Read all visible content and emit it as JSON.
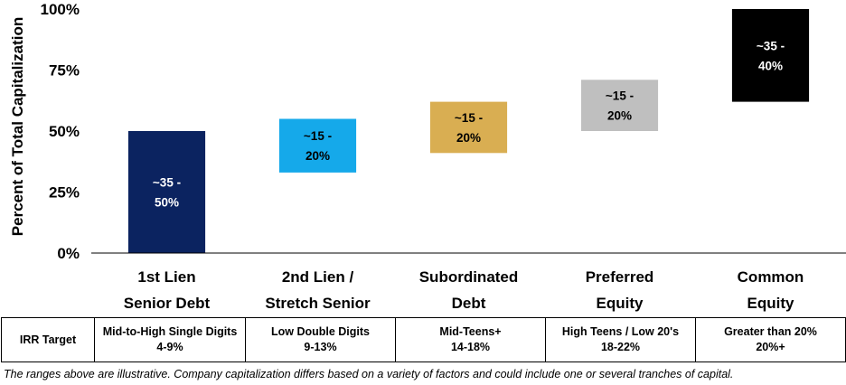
{
  "chart_data": {
    "type": "bar",
    "subtype": "floating",
    "ylabel": "Percent of Total Capitalization",
    "ylim": [
      0,
      100
    ],
    "yticks": [
      "0%",
      "25%",
      "50%",
      "75%",
      "100%"
    ],
    "grid": false,
    "categories": [
      "1st Lien\nSenior Debt",
      "2nd Lien /\nStretch Senior",
      "Subordinated\nDebt",
      "Preferred\nEquity",
      "Common\nEquity"
    ],
    "bars": [
      {
        "low": 0,
        "high": 50,
        "label": "~35 -\n50%",
        "color": "#0b2360",
        "text_color": "#ffffff"
      },
      {
        "low": 33,
        "high": 55,
        "label": "~15 -\n20%",
        "color": "#15a9ea",
        "text_color": "#000000"
      },
      {
        "low": 41,
        "high": 62,
        "label": "~15 -\n20%",
        "color": "#d9ae52",
        "text_color": "#000000"
      },
      {
        "low": 50,
        "high": 71,
        "label": "~15 -\n20%",
        "color": "#bfbfbf",
        "text_color": "#000000"
      },
      {
        "low": 62,
        "high": 100,
        "label": "~35 -\n40%",
        "color": "#000000",
        "text_color": "#ffffff"
      }
    ]
  },
  "irr_table": {
    "header": "IRR Target",
    "cells": [
      "Mid-to-High Single Digits\n4-9%",
      "Low Double Digits\n9-13%",
      "Mid-Teens+\n14-18%",
      "High Teens / Low 20's\n18-22%",
      "Greater than 20%\n20%+"
    ]
  },
  "footnote": "The ranges above are illustrative. Company capitalization differs based on a variety of factors and could include one or several tranches of capital."
}
